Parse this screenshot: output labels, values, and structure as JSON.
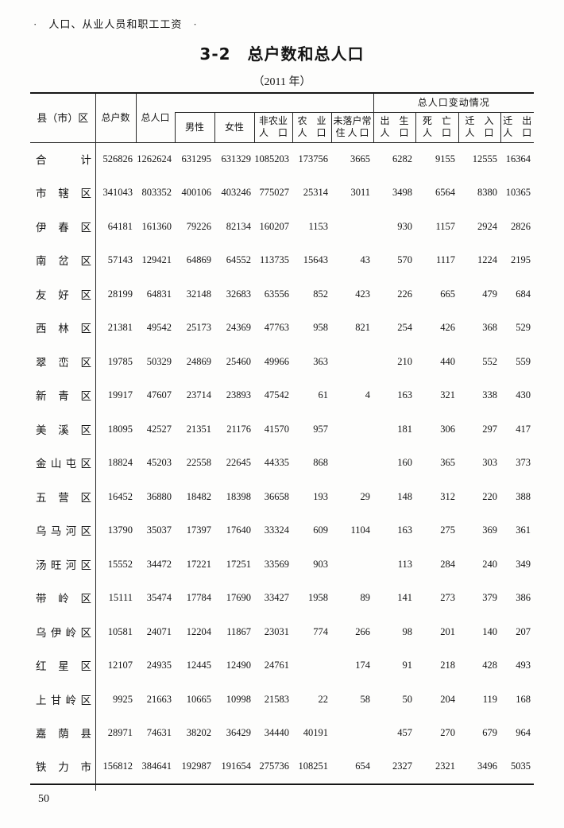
{
  "page": {
    "breadcrumb": "·　人口、从业人员和职工工资　·",
    "title": "3-2　总户数和总人口",
    "subtitle": "（2011 年）",
    "page_number": "50"
  },
  "table": {
    "header": {
      "region": "县（市）区",
      "households": "总户数",
      "total_population": "总人口",
      "change_group": "总人口变动情况",
      "male": "男性",
      "female": "女性",
      "non_agricultural": "非农业\n人　口",
      "agricultural": "农　业\n人　口",
      "unregistered": "未落户常\n住 人 口",
      "births": "出　生\n人　口",
      "deaths": "死　亡\n人　口",
      "move_in": "迁　入\n人　口",
      "move_out": "迁　出\n人　口"
    },
    "rows": [
      {
        "region": "合计",
        "values": [
          "526826",
          "1262624",
          "631295",
          "631329",
          "1085203",
          "173756",
          "3665",
          "6282",
          "9155",
          "12555",
          "16364"
        ]
      },
      {
        "region": "市辖区",
        "values": [
          "341043",
          "803352",
          "400106",
          "403246",
          "775027",
          "25314",
          "3011",
          "3498",
          "6564",
          "8380",
          "10365"
        ]
      },
      {
        "region": "伊春区",
        "values": [
          "64181",
          "161360",
          "79226",
          "82134",
          "160207",
          "1153",
          "",
          "930",
          "1157",
          "2924",
          "2826"
        ]
      },
      {
        "region": "南岔区",
        "values": [
          "57143",
          "129421",
          "64869",
          "64552",
          "113735",
          "15643",
          "43",
          "570",
          "1117",
          "1224",
          "2195"
        ]
      },
      {
        "region": "友好区",
        "values": [
          "28199",
          "64831",
          "32148",
          "32683",
          "63556",
          "852",
          "423",
          "226",
          "665",
          "479",
          "684"
        ]
      },
      {
        "region": "西林区",
        "values": [
          "21381",
          "49542",
          "25173",
          "24369",
          "47763",
          "958",
          "821",
          "254",
          "426",
          "368",
          "529"
        ]
      },
      {
        "region": "翠峦区",
        "values": [
          "19785",
          "50329",
          "24869",
          "25460",
          "49966",
          "363",
          "",
          "210",
          "440",
          "552",
          "559"
        ]
      },
      {
        "region": "新青区",
        "values": [
          "19917",
          "47607",
          "23714",
          "23893",
          "47542",
          "61",
          "4",
          "163",
          "321",
          "338",
          "430"
        ]
      },
      {
        "region": "美溪区",
        "values": [
          "18095",
          "42527",
          "21351",
          "21176",
          "41570",
          "957",
          "",
          "181",
          "306",
          "297",
          "417"
        ]
      },
      {
        "region": "金山屯区",
        "values": [
          "18824",
          "45203",
          "22558",
          "22645",
          "44335",
          "868",
          "",
          "160",
          "365",
          "303",
          "373"
        ]
      },
      {
        "region": "五营区",
        "values": [
          "16452",
          "36880",
          "18482",
          "18398",
          "36658",
          "193",
          "29",
          "148",
          "312",
          "220",
          "388"
        ]
      },
      {
        "region": "乌马河区",
        "values": [
          "13790",
          "35037",
          "17397",
          "17640",
          "33324",
          "609",
          "1104",
          "163",
          "275",
          "369",
          "361"
        ]
      },
      {
        "region": "汤旺河区",
        "values": [
          "15552",
          "34472",
          "17221",
          "17251",
          "33569",
          "903",
          "",
          "113",
          "284",
          "240",
          "349"
        ]
      },
      {
        "region": "带岭区",
        "values": [
          "15111",
          "35474",
          "17784",
          "17690",
          "33427",
          "1958",
          "89",
          "141",
          "273",
          "379",
          "386"
        ]
      },
      {
        "region": "乌伊岭区",
        "values": [
          "10581",
          "24071",
          "12204",
          "11867",
          "23031",
          "774",
          "266",
          "98",
          "201",
          "140",
          "207"
        ]
      },
      {
        "region": "红星区",
        "values": [
          "12107",
          "24935",
          "12445",
          "12490",
          "24761",
          "",
          "174",
          "91",
          "218",
          "428",
          "493"
        ]
      },
      {
        "region": "上甘岭区",
        "values": [
          "9925",
          "21663",
          "10665",
          "10998",
          "21583",
          "22",
          "58",
          "50",
          "204",
          "119",
          "168"
        ]
      },
      {
        "region": "嘉荫县",
        "values": [
          "28971",
          "74631",
          "38202",
          "36429",
          "34440",
          "40191",
          "",
          "457",
          "270",
          "679",
          "964"
        ]
      },
      {
        "region": "铁力市",
        "values": [
          "156812",
          "384641",
          "192987",
          "191654",
          "275736",
          "108251",
          "654",
          "2327",
          "2321",
          "3496",
          "5035"
        ]
      }
    ]
  }
}
